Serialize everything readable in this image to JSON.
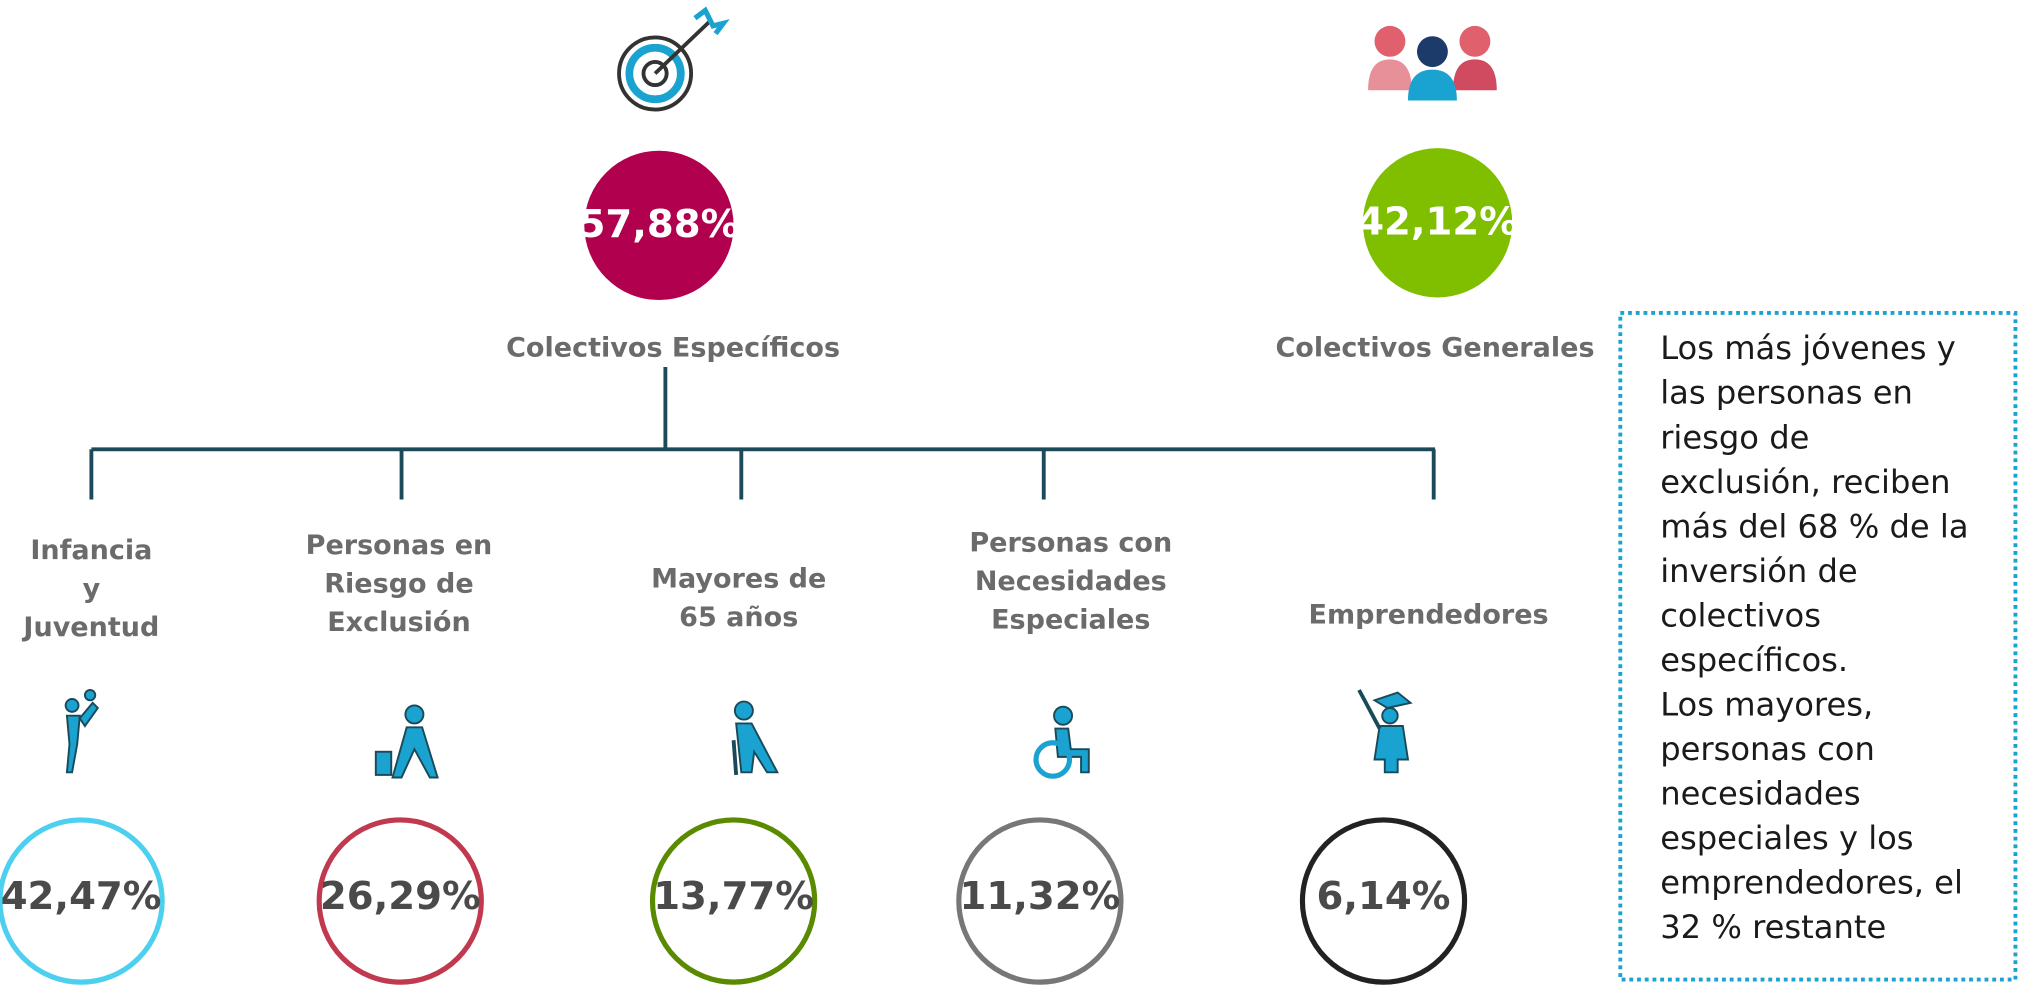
{
  "top_groups": [
    {
      "value": "57,88%",
      "label": "Colectivos Específicos"
    },
    {
      "value": "42,12%",
      "label": "Colectivos Generales"
    }
  ],
  "sub_groups": [
    {
      "label": [
        "Infancia",
        "y",
        "Juventud"
      ],
      "value": "42,47%"
    },
    {
      "label": [
        "Personas en",
        "Riesgo de",
        "Exclusión"
      ],
      "value": "26,29%"
    },
    {
      "label": [
        "Mayores de",
        "65 años"
      ],
      "value": "13,77%"
    },
    {
      "label": [
        "Personas con",
        "Necesidades",
        "Especiales"
      ],
      "value": "11,32%"
    },
    {
      "label": [
        "Emprendedores"
      ],
      "value": "6,14%"
    }
  ],
  "note": [
    "Los más jóvenes y",
    "las personas en",
    "riesgo de",
    "exclusión, reciben",
    "más del 68 % de la",
    "inversión de",
    "colectivos",
    "específicos.",
    "Los mayores,",
    "personas con",
    "necesidades",
    "especiales y los",
    "emprendedores, el",
    "32 % restante"
  ]
}
